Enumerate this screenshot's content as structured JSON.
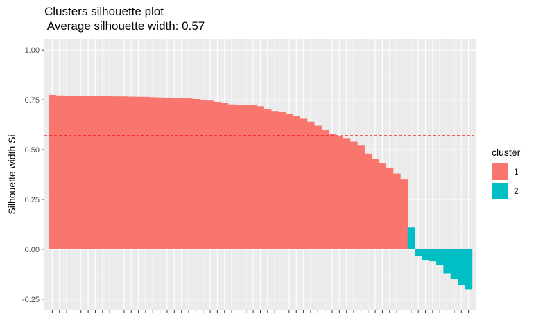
{
  "chart_data": {
    "type": "bar",
    "title": "Clusters silhouette plot",
    "subtitle": " Average silhouette width: 0.57",
    "xlabel": "",
    "ylabel": "Silhouette width Si",
    "ylim": [
      -0.25,
      1.0
    ],
    "yticks": [
      "-0.25",
      "0.00",
      "0.25",
      "0.50",
      "0.75",
      "1.00"
    ],
    "ytick_values": [
      -0.25,
      0,
      0.25,
      0.5,
      0.75,
      1.0
    ],
    "average_line": 0.57,
    "grid": true,
    "legend_placement": "right",
    "legend_title": "cluster",
    "series": [
      {
        "name": "1",
        "color": "#F8766D",
        "values": [
          0.775,
          0.772,
          0.771,
          0.77,
          0.77,
          0.77,
          0.77,
          0.768,
          0.768,
          0.767,
          0.767,
          0.766,
          0.765,
          0.765,
          0.763,
          0.762,
          0.761,
          0.76,
          0.758,
          0.757,
          0.754,
          0.751,
          0.746,
          0.74,
          0.733,
          0.727,
          0.725,
          0.724,
          0.723,
          0.718,
          0.705,
          0.694,
          0.688,
          0.678,
          0.667,
          0.655,
          0.64,
          0.62,
          0.6,
          0.58,
          0.57,
          0.558,
          0.54,
          0.52,
          0.48,
          0.455,
          0.433,
          0.41,
          0.38,
          0.35
        ]
      },
      {
        "name": "2",
        "color": "#00BFC4",
        "values": [
          0.11,
          -0.035,
          -0.055,
          -0.06,
          -0.08,
          -0.12,
          -0.15,
          -0.18,
          -0.2
        ]
      }
    ]
  }
}
